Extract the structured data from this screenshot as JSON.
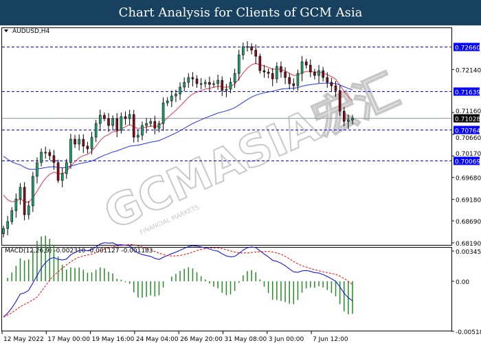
{
  "header": {
    "title": "Chart Analysis for Clients of GCM Asia"
  },
  "chart_data": {
    "type": "candlestick",
    "symbol_label": "AUDUSD,H4",
    "price_axis": {
      "ylim": [
        0.6815,
        0.7305
      ],
      "tick_labels": [
        "0.72140",
        "0.71160",
        "0.70660",
        "0.70170",
        "0.69680",
        "0.69180",
        "0.68690",
        "0.68190"
      ],
      "tick_values": [
        0.7214,
        0.7116,
        0.7066,
        0.7017,
        0.6968,
        0.6918,
        0.6869,
        0.6819
      ]
    },
    "levels": [
      {
        "label": "0.72660",
        "value": 0.7266,
        "style": "dashed",
        "color": "#0000ff"
      },
      {
        "label": "0.71639",
        "value": 0.71639,
        "style": "dashed",
        "color": "#0000ff"
      },
      {
        "label": "0.70764",
        "value": 0.70764,
        "style": "dashed",
        "color": "#0000ff"
      },
      {
        "label": "0.70069",
        "value": 0.70069,
        "style": "dashed",
        "color": "#0000ff"
      }
    ],
    "current_price": {
      "label": "0.71028",
      "value": 0.71028
    },
    "closes": [
      0.68518,
      0.68674,
      0.68924,
      0.6919,
      0.69456,
      0.68831,
      0.69034,
      0.69706,
      0.70019,
      0.70253,
      0.70253,
      0.70175,
      0.70019,
      0.69612,
      0.69768,
      0.70019,
      0.7055,
      0.70441,
      0.7055,
      0.70394,
      0.70331,
      0.70597,
      0.70909,
      0.71097,
      0.71019,
      0.70863,
      0.71019,
      0.70753,
      0.71066,
      0.71019,
      0.71113,
      0.70597,
      0.70644,
      0.70863,
      0.70909,
      0.70956,
      0.708,
      0.70909,
      0.71378,
      0.71425,
      0.71535,
      0.71582,
      0.71738,
      0.71847,
      0.71957,
      0.71925,
      0.71816,
      0.71816,
      0.71847,
      0.718,
      0.71816,
      0.71894,
      0.7166,
      0.71691,
      0.71847,
      0.7205,
      0.72472,
      0.7266,
      0.7266,
      0.72582,
      0.72441,
      0.72113,
      0.72082,
      0.7205,
      0.71925,
      0.72207,
      0.72082,
      0.71957,
      0.71816,
      0.71769,
      0.7205,
      0.72316,
      0.72238,
      0.72082,
      0.72004,
      0.72113,
      0.71957,
      0.71847,
      0.71769,
      0.7166,
      0.71191,
      0.70956,
      0.70988,
      0.71028
    ],
    "moving_averages": [
      {
        "color": "#e8334a"
      },
      {
        "color": "#2233ee"
      }
    ],
    "macd": {
      "label": "MACD(12,26,9) -0.002310 -0.001127 -0.001183",
      "ylim": [
        -0.005184,
        0.003455
      ],
      "tick_labels": [
        "0.003455",
        "0.00",
        "-0.005184"
      ],
      "tick_values": [
        0.003455,
        0,
        -0.005184
      ],
      "colors": {
        "macd": "#0000ff",
        "signal": "#ff0000",
        "histogram": "#228b22"
      }
    },
    "time_labels": [
      "12 May 2022",
      "17 May 00:00",
      "19 May 16:00",
      "24 May 04:00",
      "26 May 20:00",
      "31 May 08:00",
      "3 Jun 00:00",
      "7 Jun 12:00"
    ],
    "colors": {
      "up": "#1fa56b",
      "down": "#8b0d1c",
      "level_label_bg": "#0000ff",
      "current_label_bg": "#000000"
    }
  },
  "watermark": {
    "text": "GCMASIA宏汇",
    "subtext": "FINANCIAL MARKETS"
  }
}
